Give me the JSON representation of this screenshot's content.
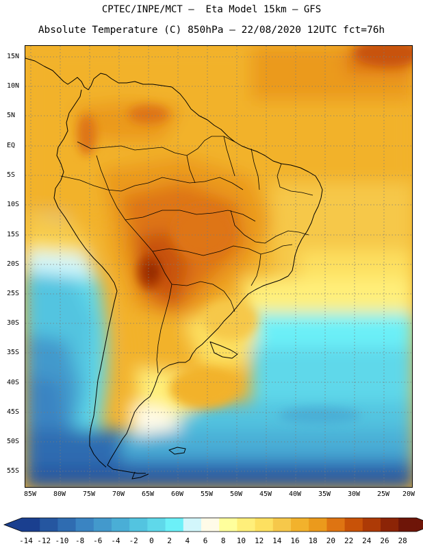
{
  "header": {
    "line1": "CPTEC/INPE/MCT –  Eta Model 15km – GFS",
    "line2": "Absolute Temperature (C) 850hPa – 22/08/2020 12UTC fct=76h"
  },
  "map": {
    "lat_labels": [
      "15N",
      "10N",
      "5N",
      "EQ",
      "5S",
      "10S",
      "15S",
      "20S",
      "25S",
      "30S",
      "35S",
      "40S",
      "45S",
      "50S",
      "55S"
    ],
    "lon_labels": [
      "85W",
      "80W",
      "75W",
      "70W",
      "65W",
      "60W",
      "55W",
      "50W",
      "45W",
      "40W",
      "35W",
      "30W",
      "25W",
      "20W"
    ]
  },
  "colorbar": {
    "labels": [
      "-14",
      "-12",
      "-10",
      "-8",
      "-6",
      "-4",
      "-2",
      "0",
      "2",
      "4",
      "6",
      "8",
      "10",
      "12",
      "14",
      "16",
      "18",
      "20",
      "22",
      "24",
      "26",
      "28"
    ],
    "colors": [
      "#1a3f8f",
      "#2556a0",
      "#2f6cb1",
      "#3a84c2",
      "#4399cc",
      "#4aaed6",
      "#53c4e0",
      "#5fd8ea",
      "#6cf0f8",
      "#d2f6fb",
      "#fffbe8",
      "#ffff9c",
      "#ffef7a",
      "#fde060",
      "#f6c84a",
      "#f2b22c",
      "#eb9a1c",
      "#de7412",
      "#c85208",
      "#ad3a06",
      "#8c2406",
      "#6e1508"
    ],
    "low_color": "#1a3f8f",
    "high_color": "#6e1508"
  }
}
